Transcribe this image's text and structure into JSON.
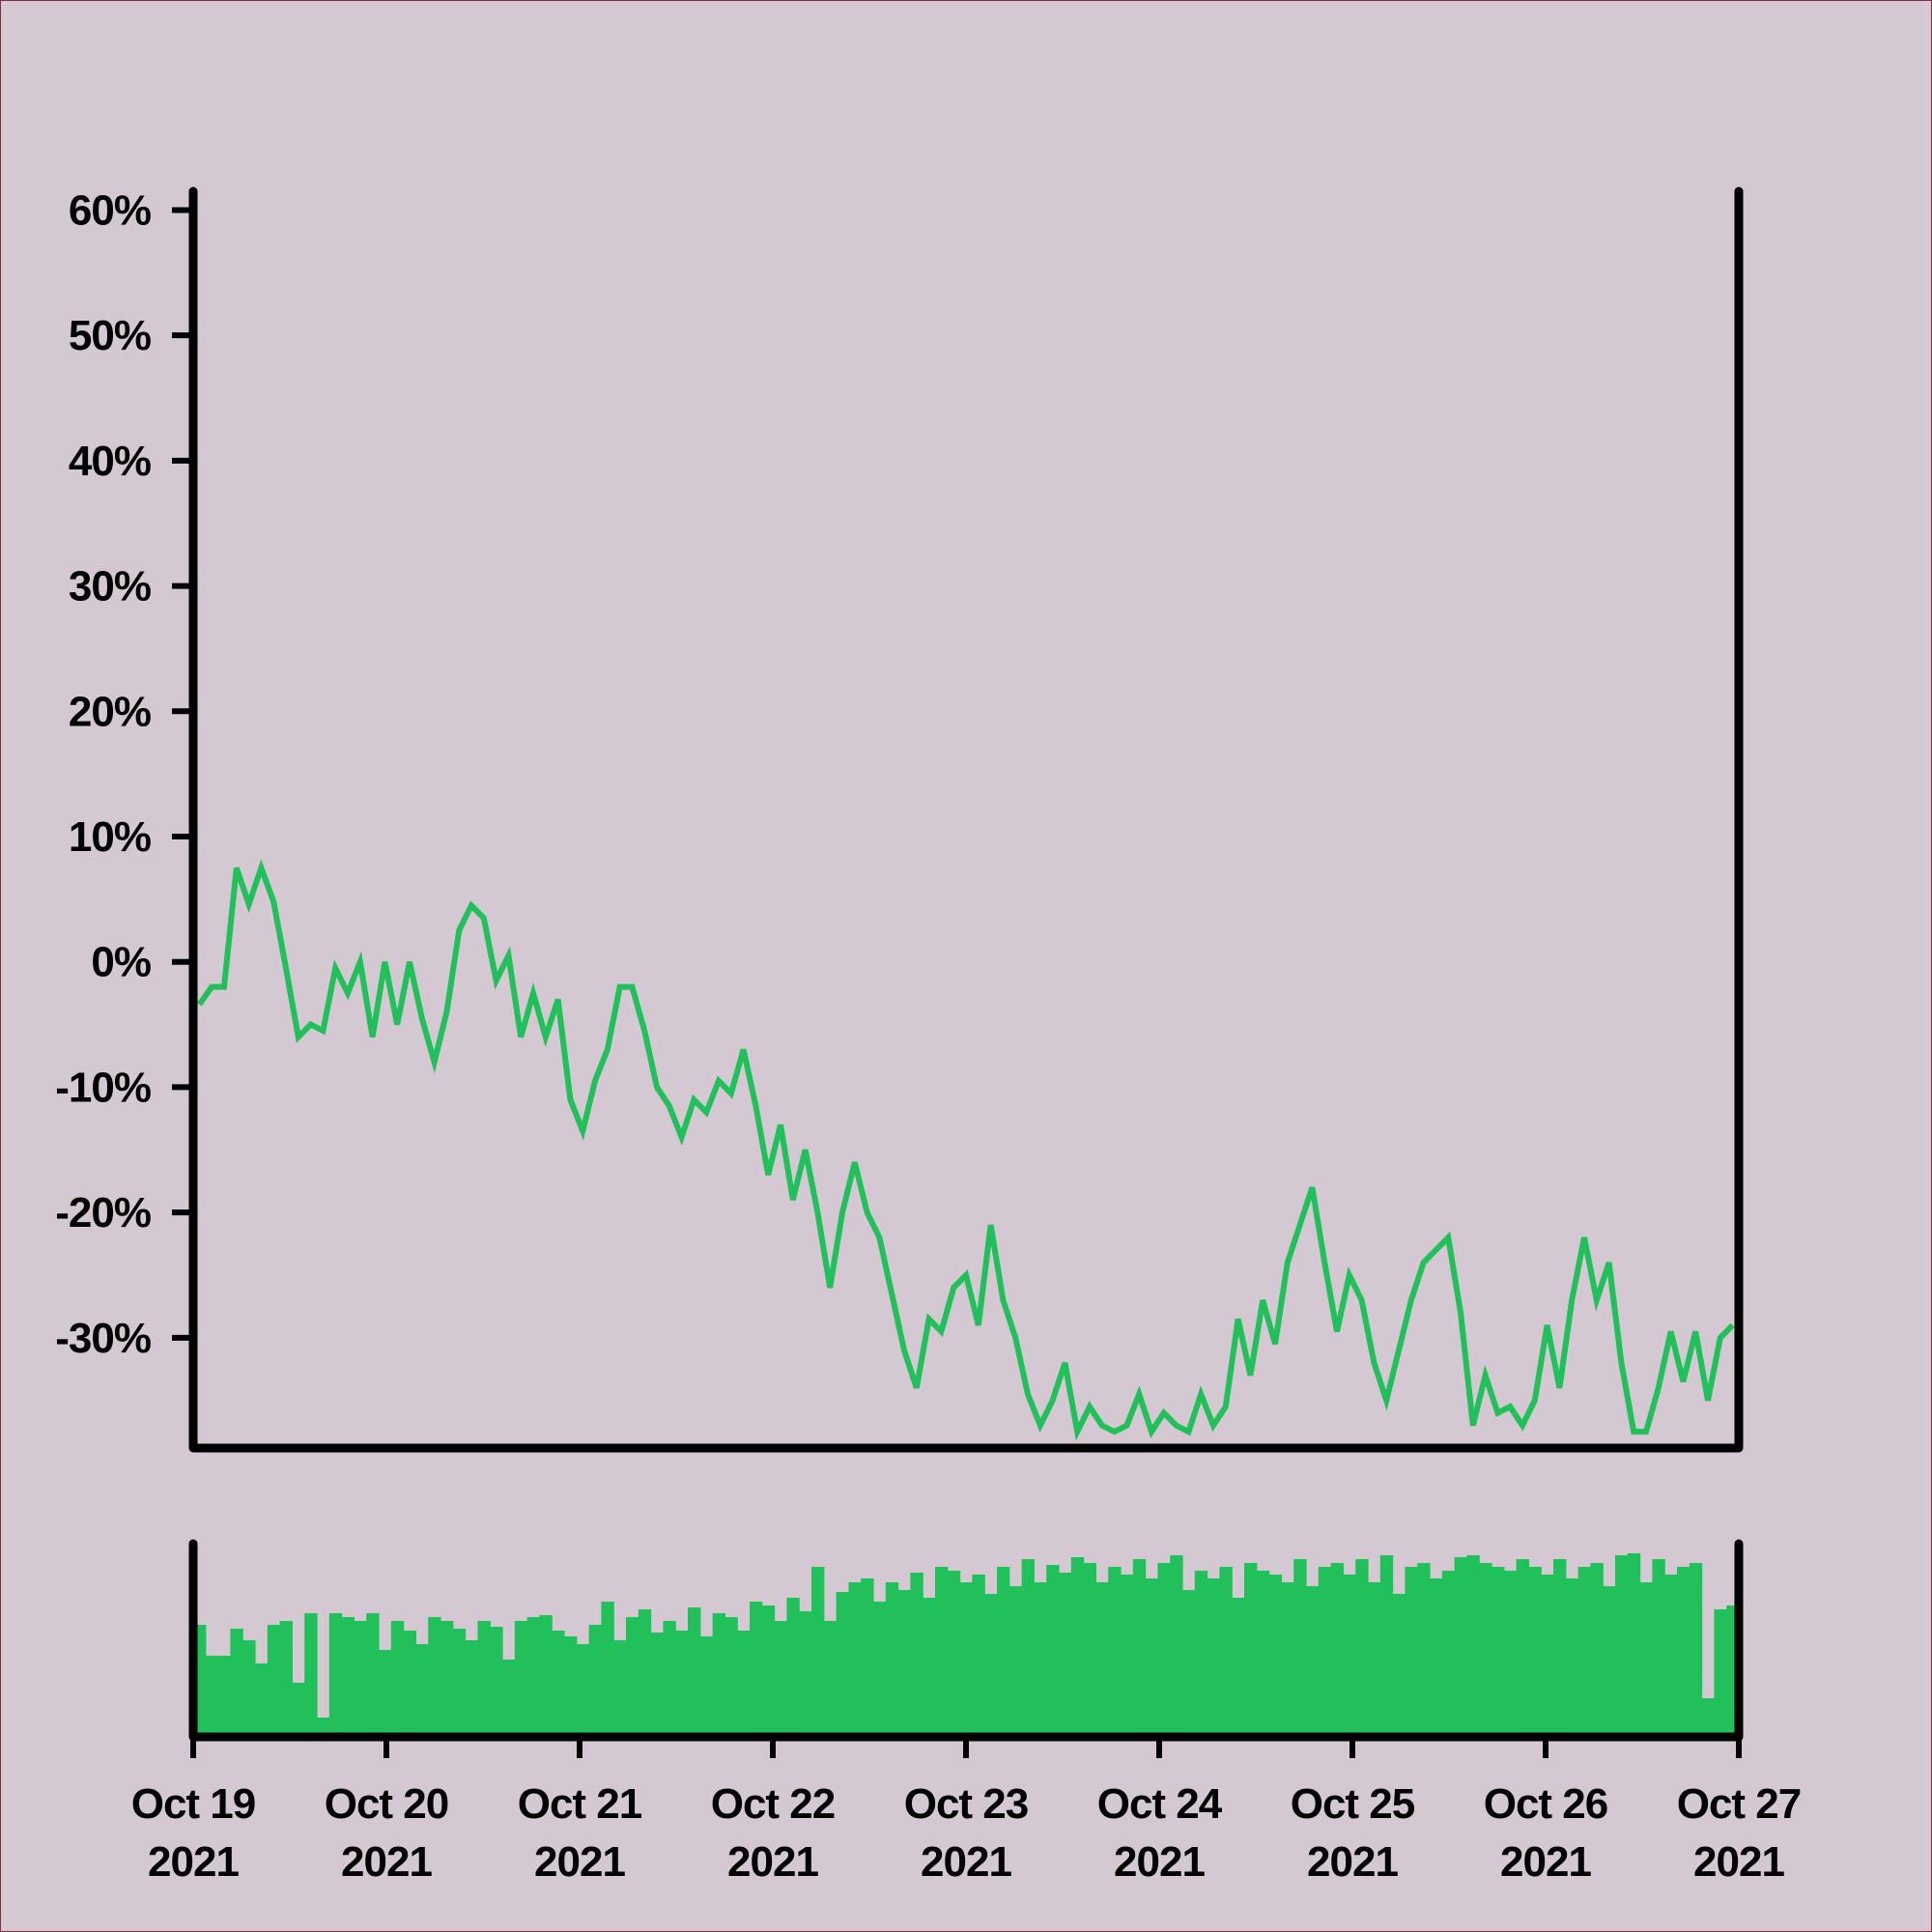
{
  "chart_data": [
    {
      "type": "line",
      "color": "#21c05a",
      "xlim": [
        "2021-10-19",
        "2021-10-27"
      ],
      "xticks": [
        {
          "value": "2021-10-19",
          "label": "Oct 19\n2021"
        },
        {
          "value": "2021-10-20",
          "label": "Oct 20\n2021"
        },
        {
          "value": "2021-10-21",
          "label": "Oct 21\n2021"
        },
        {
          "value": "2021-10-22",
          "label": "Oct 22\n2021"
        },
        {
          "value": "2021-10-23",
          "label": "Oct 23\n2021"
        },
        {
          "value": "2021-10-24",
          "label": "Oct 24\n2021"
        },
        {
          "value": "2021-10-25",
          "label": "Oct 25\n2021"
        },
        {
          "value": "2021-10-26",
          "label": "Oct 26\n2021"
        },
        {
          "value": "2021-10-27",
          "label": "Oct 27\n2021"
        }
      ],
      "ylim": [
        -38.8,
        61.5
      ],
      "yticks": [
        {
          "value": -30,
          "label": "-30%"
        },
        {
          "value": -20,
          "label": "-20%"
        },
        {
          "value": -10,
          "label": "-10%"
        },
        {
          "value": 0,
          "label": "0%"
        },
        {
          "value": 10,
          "label": "10%"
        },
        {
          "value": 20,
          "label": "20%"
        },
        {
          "value": 30,
          "label": "30%"
        },
        {
          "value": 40,
          "label": "40%"
        },
        {
          "value": 50,
          "label": "50%"
        },
        {
          "value": 60,
          "label": "60%"
        }
      ],
      "values": [
        -3.4,
        -2,
        -2,
        7.5,
        4.6,
        7.5,
        4.8,
        -0.5,
        -6,
        -5,
        -5.5,
        -0.5,
        -2.5,
        0,
        -6,
        0,
        -5,
        0,
        -4.5,
        -8,
        -4,
        2.5,
        4.5,
        3.5,
        -1.5,
        0.5,
        -6,
        -2.5,
        -6,
        -3,
        -11,
        -13.5,
        -9.5,
        -7,
        -2,
        -2,
        -5.5,
        -10,
        -11.5,
        -14,
        -11,
        -12,
        -9.5,
        -10.5,
        -7,
        -11.5,
        -17,
        -13,
        -19,
        -15,
        -20,
        -26,
        -20,
        -16,
        -20,
        -22,
        -26.5,
        -31,
        -34,
        -28.5,
        -29.5,
        -26,
        -25,
        -29,
        -21,
        -27,
        -30,
        -34.5,
        -37,
        -35,
        -32,
        -37.5,
        -35.5,
        -37,
        -37.5,
        -37,
        -34.5,
        -37.5,
        -36,
        -37,
        -37.5,
        -34.5,
        -37,
        -35.5,
        -28.5,
        -33,
        -27,
        -30.5,
        -24,
        -21,
        -18,
        -24,
        -29.5,
        -25,
        -27,
        -32,
        -35,
        -31,
        -27,
        -24,
        -23,
        -22,
        -28,
        -37,
        -33,
        -36,
        -35.5,
        -37,
        -35,
        -29,
        -34,
        -27,
        -22,
        -27,
        -24,
        -32,
        -37.5,
        -37.5,
        -34,
        -29.5,
        -33.5,
        -29.5,
        -35,
        -30,
        -29
      ]
    },
    {
      "type": "bar",
      "color": "#21c05a",
      "ylim": [
        0,
        100
      ],
      "values": [
        58,
        42,
        42,
        56,
        50,
        38,
        58,
        60,
        28,
        64,
        10,
        64,
        62,
        60,
        64,
        45,
        60,
        55,
        48,
        62,
        60,
        56,
        50,
        60,
        57,
        40,
        60,
        62,
        63,
        55,
        52,
        48,
        58,
        70,
        50,
        62,
        66,
        54,
        60,
        55,
        67,
        52,
        64,
        62,
        55,
        70,
        68,
        60,
        72,
        65,
        88,
        60,
        75,
        80,
        82,
        70,
        80,
        76,
        85,
        72,
        88,
        86,
        80,
        84,
        74,
        88,
        78,
        92,
        80,
        89,
        85,
        93,
        90,
        80,
        88,
        84,
        92,
        82,
        90,
        94,
        76,
        86,
        82,
        88,
        72,
        90,
        86,
        84,
        80,
        92,
        78,
        88,
        90,
        84,
        92,
        80,
        94,
        74,
        88,
        90,
        82,
        86,
        93,
        94,
        90,
        88,
        86,
        92,
        88,
        84,
        92,
        82,
        88,
        90,
        78,
        94,
        95,
        80,
        92,
        84,
        88,
        90,
        20,
        66,
        68
      ]
    }
  ]
}
